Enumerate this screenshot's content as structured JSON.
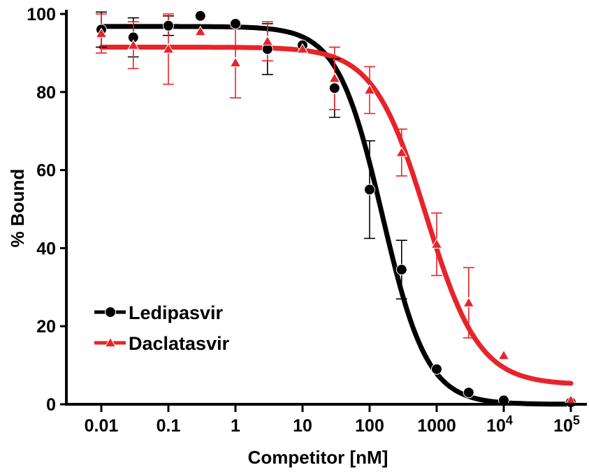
{
  "chart_data": {
    "type": "scatter",
    "xlabel": "Competitor [nM]",
    "ylabel": "% Bound",
    "x_scale": "log",
    "xlim": [
      0.0045,
      100000
    ],
    "ylim": [
      0,
      100
    ],
    "x_ticks": [
      {
        "value": 0.01,
        "label": "0.01"
      },
      {
        "value": 0.1,
        "label": "0.1"
      },
      {
        "value": 1,
        "label": "1"
      },
      {
        "value": 10,
        "label": "10"
      },
      {
        "value": 100,
        "label": "100"
      },
      {
        "value": 1000,
        "label": "1000"
      },
      {
        "value": 10000,
        "base": "10",
        "exp": "4"
      },
      {
        "value": 100000,
        "base": "10",
        "exp": "5"
      }
    ],
    "y_ticks": [
      {
        "value": 0,
        "label": "0"
      },
      {
        "value": 20,
        "label": "20"
      },
      {
        "value": 40,
        "label": "40"
      },
      {
        "value": 60,
        "label": "60"
      },
      {
        "value": 80,
        "label": "80"
      },
      {
        "value": 100,
        "label": "100"
      }
    ],
    "grid": false,
    "legend_position": "bottom-left",
    "series": [
      {
        "name": "Ledipasvir",
        "color": "#000000",
        "marker": "circle",
        "points": [
          {
            "x": 0.01,
            "y": 96,
            "err": 4.5
          },
          {
            "x": 0.03,
            "y": 94,
            "err": 5
          },
          {
            "x": 0.1,
            "y": 97,
            "err": 2.5
          },
          {
            "x": 0.3,
            "y": 99.5,
            "err": 0
          },
          {
            "x": 1,
            "y": 97.5,
            "err": 0
          },
          {
            "x": 3,
            "y": 91,
            "err": 6.5
          },
          {
            "x": 10,
            "y": 92,
            "err": 0
          },
          {
            "x": 30,
            "y": 81,
            "err": 7.5
          },
          {
            "x": 100,
            "y": 55,
            "err": 12.5
          },
          {
            "x": 300,
            "y": 34.5,
            "err": 7.5
          },
          {
            "x": 1000,
            "y": 9,
            "err": 0
          },
          {
            "x": 3000,
            "y": 3,
            "err": 0
          },
          {
            "x": 10000,
            "y": 1,
            "err": 0
          },
          {
            "x": 100000,
            "y": 0.5,
            "err": 0
          }
        ],
        "fit": {
          "top": 96.8,
          "bottom": 0,
          "ic50": 155,
          "hill": 1.3
        }
      },
      {
        "name": "Daclatasvir",
        "color": "#e8232a",
        "marker": "triangle",
        "points": [
          {
            "x": 0.01,
            "y": 95,
            "err": 5
          },
          {
            "x": 0.03,
            "y": 92,
            "err": 6
          },
          {
            "x": 0.1,
            "y": 91,
            "err": 9
          },
          {
            "x": 0.3,
            "y": 95.5,
            "err": 0
          },
          {
            "x": 1,
            "y": 87.5,
            "err": 9
          },
          {
            "x": 3,
            "y": 93,
            "err": 5
          },
          {
            "x": 10,
            "y": 91,
            "err": 0
          },
          {
            "x": 30,
            "y": 83.5,
            "err": 8
          },
          {
            "x": 100,
            "y": 80.5,
            "err": 6
          },
          {
            "x": 300,
            "y": 64.5,
            "err": 6
          },
          {
            "x": 1000,
            "y": 41,
            "err": 8
          },
          {
            "x": 3000,
            "y": 26,
            "err": 9
          },
          {
            "x": 10000,
            "y": 12.5,
            "err": 0
          },
          {
            "x": 100000,
            "y": 1,
            "err": 0
          }
        ],
        "fit": {
          "top": 91.5,
          "bottom": 5,
          "ic50": 700,
          "hill": 1.1
        }
      }
    ]
  }
}
